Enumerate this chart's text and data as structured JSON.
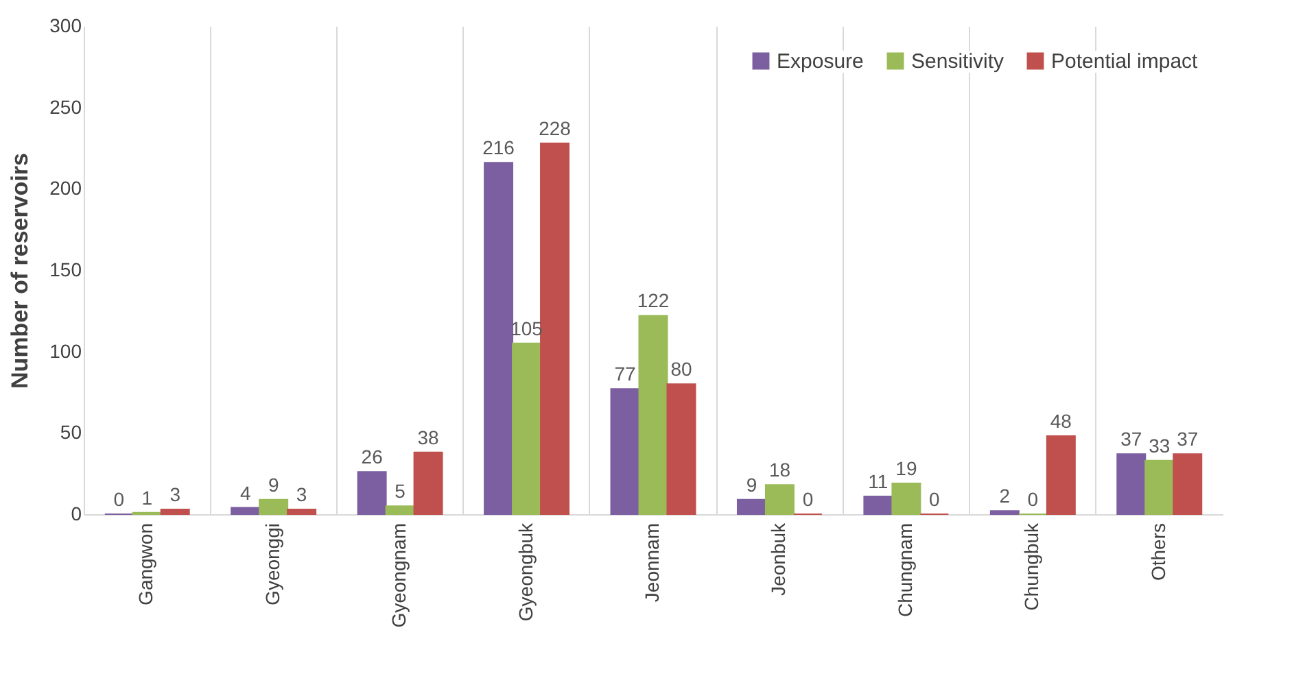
{
  "chart_data": {
    "type": "bar",
    "ylabel": "Number of reservoirs",
    "categories": [
      "Gangwon",
      "Gyeonggi",
      "Gyeongnam",
      "Gyeongbuk",
      "Jeonnam",
      "Jeonbuk",
      "Chungnam",
      "Chungbuk",
      "Others"
    ],
    "series": [
      {
        "name": "Exposure",
        "color": "#7b5fa0",
        "values": [
          0,
          4,
          26,
          216,
          77,
          9,
          11,
          2,
          37
        ]
      },
      {
        "name": "Sensitivity",
        "color": "#9bbb59",
        "values": [
          1,
          9,
          5,
          105,
          122,
          18,
          19,
          0,
          33
        ]
      },
      {
        "name": "Potential impact",
        "color": "#c0504d",
        "values": [
          3,
          3,
          38,
          228,
          80,
          0,
          0,
          48,
          37
        ]
      }
    ],
    "ylim": [
      0,
      300
    ],
    "yticks": [
      0,
      50,
      100,
      150,
      200,
      250,
      300
    ],
    "grid": "x",
    "legend": "top right",
    "data_labels": true
  }
}
